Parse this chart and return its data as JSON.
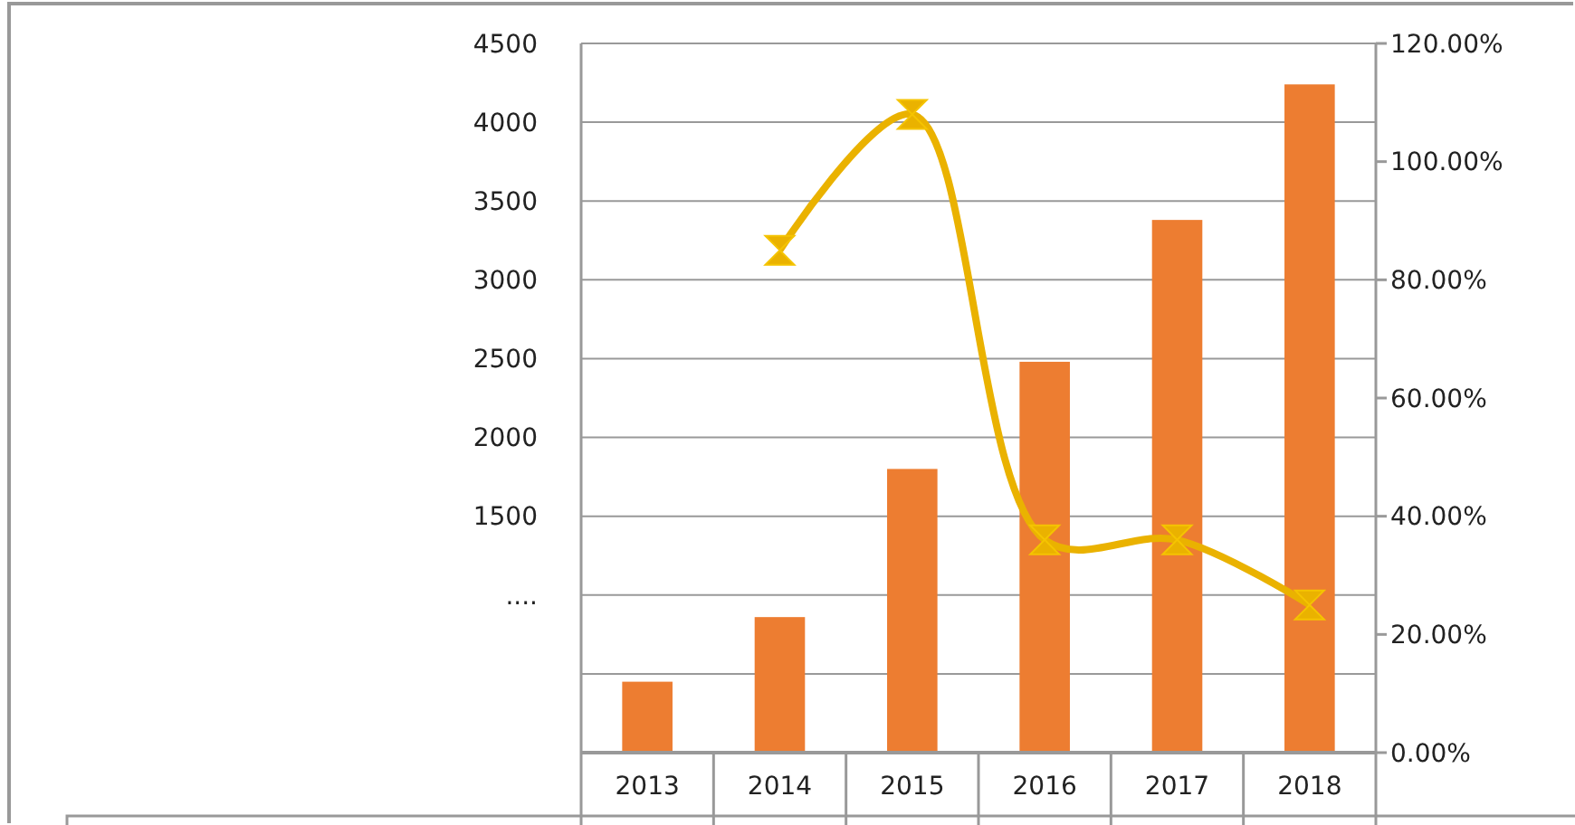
{
  "chart_data": {
    "type": "bar",
    "categories": [
      "2013",
      "2014",
      "2015",
      "2016",
      "2017",
      "2018"
    ],
    "series": [
      {
        "color": "#ed7d31",
        "values": [
          450,
          860,
          1800,
          2480,
          3380,
          4240
        ]
      },
      {
        "type": "line",
        "axis": "y2",
        "color": "#eab200",
        "marker": "triangle",
        "values": [
          null,
          85,
          108,
          36,
          36,
          25
        ]
      }
    ],
    "ylim": [
      0,
      4500
    ],
    "yticks": [
      {
        "value": 0,
        "label": null
      },
      {
        "value": 500,
        "label": null
      },
      {
        "value": 1000,
        "label": "...."
      },
      1500,
      2000,
      2500,
      3000,
      3500,
      4000,
      4500
    ],
    "y2lim": [
      0,
      120
    ],
    "y2ticks": [
      {
        "value": 0,
        "label": "0.00%"
      },
      {
        "value": 20,
        "label": "20.00%"
      },
      {
        "value": 40,
        "label": "40.00%"
      },
      {
        "value": 60,
        "label": "60.00%"
      },
      {
        "value": 80,
        "label": "80.00%"
      },
      {
        "value": 100,
        "label": "100.00%"
      },
      {
        "value": 120,
        "label": "120.00%"
      }
    ],
    "grid": "y"
  }
}
